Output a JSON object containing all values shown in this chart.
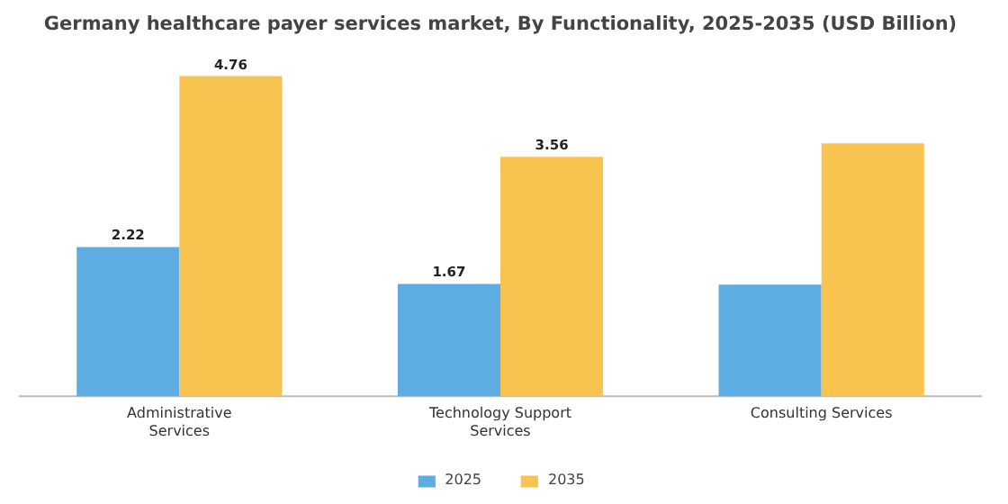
{
  "chart_data": {
    "type": "bar",
    "title": "Germany healthcare payer services market, By Functionality, 2025-2035 (USD Billion)",
    "categories": [
      "Administrative Services",
      "Technology Support Services",
      "Consulting Services"
    ],
    "series": [
      {
        "name": "2025",
        "color": "#5dade2",
        "values": [
          2.22,
          1.67,
          1.66
        ],
        "value_labels": [
          "2.22",
          "1.67",
          null
        ]
      },
      {
        "name": "2035",
        "color": "#f8c44f",
        "values": [
          4.76,
          3.56,
          3.76
        ],
        "value_labels": [
          "4.76",
          "3.56",
          null
        ]
      }
    ],
    "legend": "bottom"
  }
}
